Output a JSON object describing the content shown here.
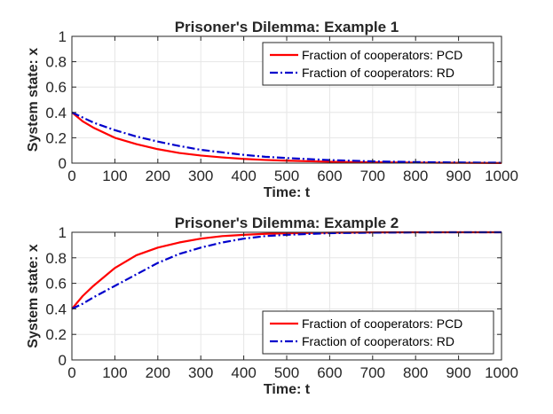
{
  "chart_data": [
    {
      "type": "line",
      "title": "Prisoner's Dilemma: Example 1",
      "xlabel": "Time: t",
      "ylabel": "System state: x",
      "xlim": [
        0,
        1000
      ],
      "ylim": [
        0,
        1
      ],
      "xticks": [
        0,
        100,
        200,
        300,
        400,
        500,
        600,
        700,
        800,
        900,
        1000
      ],
      "yticks": [
        0,
        0.2,
        0.4,
        0.6,
        0.8,
        1
      ],
      "grid": true,
      "legend_position": "top-right",
      "series": [
        {
          "name": "Fraction of cooperators: PCD",
          "color": "#ff0000",
          "style": "solid",
          "x": [
            0,
            25,
            50,
            100,
            150,
            200,
            250,
            300,
            350,
            400,
            450,
            500,
            600,
            700,
            800,
            900,
            1000
          ],
          "y": [
            0.4,
            0.33,
            0.28,
            0.2,
            0.15,
            0.11,
            0.08,
            0.06,
            0.045,
            0.033,
            0.025,
            0.019,
            0.011,
            0.006,
            0.004,
            0.002,
            0.001
          ]
        },
        {
          "name": "Fraction of cooperators: RD",
          "color": "#0000cc",
          "style": "dashdot",
          "x": [
            0,
            25,
            50,
            100,
            150,
            200,
            250,
            300,
            350,
            400,
            450,
            500,
            600,
            700,
            800,
            900,
            1000
          ],
          "y": [
            0.4,
            0.36,
            0.32,
            0.26,
            0.21,
            0.17,
            0.135,
            0.105,
            0.085,
            0.065,
            0.05,
            0.04,
            0.024,
            0.014,
            0.008,
            0.005,
            0.003
          ]
        }
      ]
    },
    {
      "type": "line",
      "title": "Prisoner's Dilemma: Example 2",
      "xlabel": "Time: t",
      "ylabel": "System state: x",
      "xlim": [
        0,
        1000
      ],
      "ylim": [
        0,
        1
      ],
      "xticks": [
        0,
        100,
        200,
        300,
        400,
        500,
        600,
        700,
        800,
        900,
        1000
      ],
      "yticks": [
        0,
        0.2,
        0.4,
        0.6,
        0.8,
        1
      ],
      "grid": true,
      "legend_position": "bottom-right",
      "series": [
        {
          "name": "Fraction of cooperators: PCD",
          "color": "#ff0000",
          "style": "solid",
          "x": [
            0,
            25,
            50,
            100,
            150,
            200,
            250,
            300,
            350,
            400,
            450,
            500,
            600,
            700,
            800,
            900,
            1000
          ],
          "y": [
            0.4,
            0.5,
            0.58,
            0.72,
            0.82,
            0.88,
            0.92,
            0.95,
            0.97,
            0.98,
            0.988,
            0.992,
            0.997,
            0.999,
            1.0,
            1.0,
            1.0
          ]
        },
        {
          "name": "Fraction of cooperators: RD",
          "color": "#0000cc",
          "style": "dashdot",
          "x": [
            0,
            25,
            50,
            100,
            150,
            200,
            250,
            300,
            350,
            400,
            450,
            500,
            600,
            700,
            800,
            900,
            1000
          ],
          "y": [
            0.4,
            0.44,
            0.49,
            0.58,
            0.67,
            0.76,
            0.83,
            0.88,
            0.92,
            0.95,
            0.97,
            0.98,
            0.993,
            0.997,
            0.999,
            1.0,
            1.0
          ]
        }
      ]
    }
  ]
}
